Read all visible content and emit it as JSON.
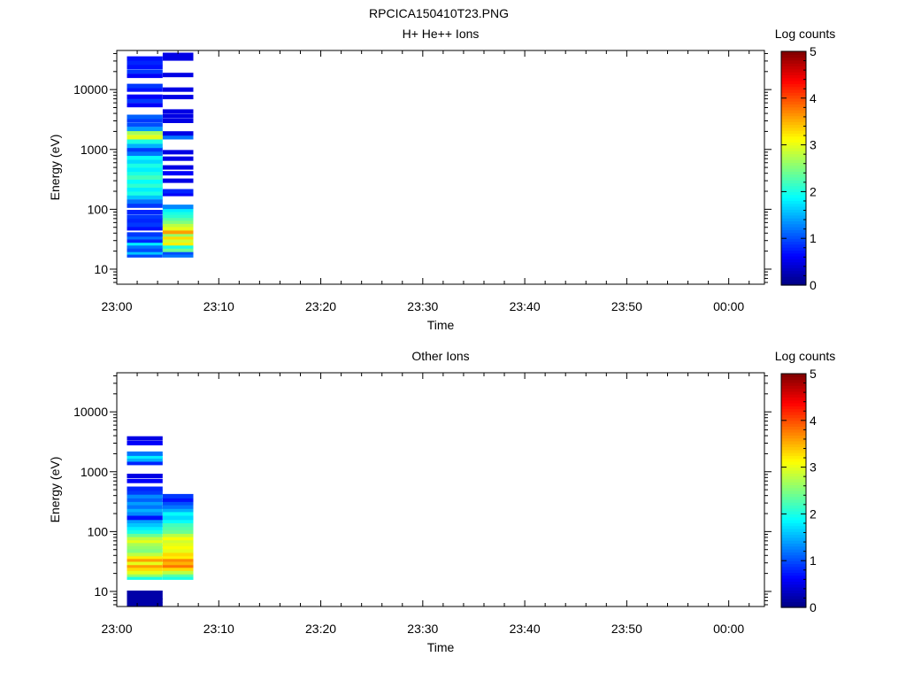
{
  "figure_title": "RPCICA150410T23.PNG",
  "colormap": [
    "#00007f",
    "#0000ff",
    "#007fff",
    "#00ffff",
    "#7fff7f",
    "#ffff00",
    "#ff7f00",
    "#ff0000",
    "#7f0000"
  ],
  "chart_data": [
    {
      "type": "heatmap",
      "title": "H+ He++ Ions",
      "xlabel": "Time",
      "ylabel": "Energy (eV)",
      "y_scale": "log",
      "ylim": [
        5.6,
        45000
      ],
      "x_ticks": [
        "23:00",
        "23:10",
        "23:20",
        "23:30",
        "23:40",
        "23:50",
        "00:00"
      ],
      "y_ticks": [
        "10",
        "100",
        "1000",
        "10000"
      ],
      "colorbar": {
        "label": "Log counts",
        "ticks": [
          "0",
          "1",
          "2",
          "3",
          "4",
          "5"
        ],
        "range": [
          0,
          5
        ]
      },
      "columns": [
        {
          "time_start": "23:01",
          "time_end": "23:04.5",
          "bins": [
            {
              "e": 17,
              "v": 1.0
            },
            {
              "e": 19,
              "v": 1.6
            },
            {
              "e": 21,
              "v": 1.0
            },
            {
              "e": 24,
              "v": 1.2
            },
            {
              "e": 27,
              "v": 1.8
            },
            {
              "e": 30,
              "v": 0.8
            },
            {
              "e": 34,
              "v": 1.2
            },
            {
              "e": 38,
              "v": 0.9
            },
            {
              "e": 48,
              "v": 0.7
            },
            {
              "e": 55,
              "v": 0.9
            },
            {
              "e": 65,
              "v": 0.8
            },
            {
              "e": 75,
              "v": 0.9
            },
            {
              "e": 90,
              "v": 0.8
            },
            {
              "e": 115,
              "v": 0.9
            },
            {
              "e": 135,
              "v": 1.2
            },
            {
              "e": 160,
              "v": 1.6
            },
            {
              "e": 185,
              "v": 2.0
            },
            {
              "e": 215,
              "v": 1.8
            },
            {
              "e": 250,
              "v": 2.1
            },
            {
              "e": 290,
              "v": 1.9
            },
            {
              "e": 340,
              "v": 2.2
            },
            {
              "e": 400,
              "v": 2.0
            },
            {
              "e": 460,
              "v": 1.8
            },
            {
              "e": 540,
              "v": 2.0
            },
            {
              "e": 630,
              "v": 1.7
            },
            {
              "e": 730,
              "v": 1.9
            },
            {
              "e": 850,
              "v": 1.2
            },
            {
              "e": 1000,
              "v": 0.9
            },
            {
              "e": 1150,
              "v": 1.5
            },
            {
              "e": 1350,
              "v": 2.0
            },
            {
              "e": 1600,
              "v": 3.0
            },
            {
              "e": 1900,
              "v": 2.7
            },
            {
              "e": 2200,
              "v": 1.4
            },
            {
              "e": 2600,
              "v": 1.0
            },
            {
              "e": 3100,
              "v": 0.9
            },
            {
              "e": 3500,
              "v": 1.1
            },
            {
              "e": 5500,
              "v": 0.6
            },
            {
              "e": 6500,
              "v": 0.9
            },
            {
              "e": 7600,
              "v": 0.6
            },
            {
              "e": 10000,
              "v": 0.7
            },
            {
              "e": 11500,
              "v": 0.9
            },
            {
              "e": 17000,
              "v": 0.6
            },
            {
              "e": 20000,
              "v": 0.9
            },
            {
              "e": 24000,
              "v": 0.7
            },
            {
              "e": 28000,
              "v": 0.8
            },
            {
              "e": 33000,
              "v": 0.7
            }
          ]
        },
        {
          "time_start": "23:04.5",
          "time_end": "23:07.5",
          "bins": [
            {
              "e": 17,
              "v": 1.2
            },
            {
              "e": 19,
              "v": 1.0
            },
            {
              "e": 21,
              "v": 2.4
            },
            {
              "e": 24,
              "v": 2.0
            },
            {
              "e": 27,
              "v": 3.2
            },
            {
              "e": 30,
              "v": 2.9
            },
            {
              "e": 34,
              "v": 3.3
            },
            {
              "e": 38,
              "v": 2.6
            },
            {
              "e": 42,
              "v": 3.6
            },
            {
              "e": 48,
              "v": 3.0
            },
            {
              "e": 55,
              "v": 2.8
            },
            {
              "e": 62,
              "v": 2.5
            },
            {
              "e": 70,
              "v": 2.3
            },
            {
              "e": 78,
              "v": 2.1
            },
            {
              "e": 88,
              "v": 2.0
            },
            {
              "e": 98,
              "v": 1.8
            },
            {
              "e": 110,
              "v": 1.3
            },
            {
              "e": 180,
              "v": 0.6
            },
            {
              "e": 200,
              "v": 0.8
            },
            {
              "e": 300,
              "v": 0.5
            },
            {
              "e": 400,
              "v": 0.6
            },
            {
              "e": 500,
              "v": 0.5
            },
            {
              "e": 700,
              "v": 0.5
            },
            {
              "e": 900,
              "v": 0.5
            },
            {
              "e": 1600,
              "v": 1.2
            },
            {
              "e": 1850,
              "v": 0.5
            },
            {
              "e": 3000,
              "v": 0.5
            },
            {
              "e": 3600,
              "v": 0.5
            },
            {
              "e": 4300,
              "v": 0.5
            },
            {
              "e": 7500,
              "v": 0.5
            },
            {
              "e": 10000,
              "v": 0.5
            },
            {
              "e": 17500,
              "v": 0.5
            },
            {
              "e": 33000,
              "v": 0.5
            },
            {
              "e": 38000,
              "v": 0.5
            }
          ]
        }
      ]
    },
    {
      "type": "heatmap",
      "title": "Other Ions",
      "xlabel": "Time",
      "ylabel": "Energy (eV)",
      "y_scale": "log",
      "ylim": [
        5.6,
        45000
      ],
      "x_ticks": [
        "23:00",
        "23:10",
        "23:20",
        "23:30",
        "23:40",
        "23:50",
        "00:00"
      ],
      "y_ticks": [
        "10",
        "100",
        "1000",
        "10000"
      ],
      "colorbar": {
        "label": "Log counts",
        "ticks": [
          "0",
          "1",
          "2",
          "3",
          "4",
          "5"
        ],
        "range": [
          0,
          5
        ]
      },
      "columns": [
        {
          "time_start": "23:01",
          "time_end": "23:04.5",
          "bins": [
            {
              "e": 6,
              "v": 0.2
            },
            {
              "e": 7,
              "v": 0.2
            },
            {
              "e": 8,
              "v": 0.2
            },
            {
              "e": 9.5,
              "v": 0.2
            },
            {
              "e": 17,
              "v": 2.0
            },
            {
              "e": 19,
              "v": 2.6
            },
            {
              "e": 21,
              "v": 3.0
            },
            {
              "e": 24,
              "v": 3.3
            },
            {
              "e": 27,
              "v": 3.6
            },
            {
              "e": 30,
              "v": 3.0
            },
            {
              "e": 34,
              "v": 3.6
            },
            {
              "e": 38,
              "v": 3.2
            },
            {
              "e": 42,
              "v": 2.8
            },
            {
              "e": 48,
              "v": 2.5
            },
            {
              "e": 55,
              "v": 2.6
            },
            {
              "e": 62,
              "v": 2.7
            },
            {
              "e": 70,
              "v": 3.0
            },
            {
              "e": 78,
              "v": 2.8
            },
            {
              "e": 88,
              "v": 2.4
            },
            {
              "e": 100,
              "v": 2.0
            },
            {
              "e": 115,
              "v": 1.8
            },
            {
              "e": 130,
              "v": 1.6
            },
            {
              "e": 150,
              "v": 1.4
            },
            {
              "e": 170,
              "v": 0.7
            },
            {
              "e": 200,
              "v": 1.3
            },
            {
              "e": 230,
              "v": 1.5
            },
            {
              "e": 260,
              "v": 1.2
            },
            {
              "e": 300,
              "v": 1.4
            },
            {
              "e": 340,
              "v": 1.1
            },
            {
              "e": 390,
              "v": 1.3
            },
            {
              "e": 450,
              "v": 0.9
            },
            {
              "e": 520,
              "v": 0.8
            },
            {
              "e": 700,
              "v": 0.6
            },
            {
              "e": 850,
              "v": 0.5
            },
            {
              "e": 1400,
              "v": 0.8
            },
            {
              "e": 1600,
              "v": 1.5
            },
            {
              "e": 1800,
              "v": 1.8
            },
            {
              "e": 2000,
              "v": 1.2
            },
            {
              "e": 3000,
              "v": 0.6
            },
            {
              "e": 3600,
              "v": 0.5
            }
          ]
        },
        {
          "time_start": "23:04.5",
          "time_end": "23:07.5",
          "bins": [
            {
              "e": 17,
              "v": 2.0
            },
            {
              "e": 19,
              "v": 2.3
            },
            {
              "e": 21,
              "v": 2.8
            },
            {
              "e": 24,
              "v": 3.3
            },
            {
              "e": 27,
              "v": 3.8
            },
            {
              "e": 30,
              "v": 3.5
            },
            {
              "e": 34,
              "v": 3.7
            },
            {
              "e": 38,
              "v": 3.2
            },
            {
              "e": 42,
              "v": 3.3
            },
            {
              "e": 48,
              "v": 3.0
            },
            {
              "e": 55,
              "v": 3.1
            },
            {
              "e": 62,
              "v": 3.0
            },
            {
              "e": 70,
              "v": 2.9
            },
            {
              "e": 78,
              "v": 3.1
            },
            {
              "e": 88,
              "v": 2.8
            },
            {
              "e": 100,
              "v": 2.4
            },
            {
              "e": 115,
              "v": 2.3
            },
            {
              "e": 130,
              "v": 2.2
            },
            {
              "e": 150,
              "v": 1.9
            },
            {
              "e": 170,
              "v": 1.7
            },
            {
              "e": 200,
              "v": 1.9
            },
            {
              "e": 230,
              "v": 1.5
            },
            {
              "e": 260,
              "v": 1.2
            },
            {
              "e": 300,
              "v": 1.0
            },
            {
              "e": 340,
              "v": 0.7
            },
            {
              "e": 390,
              "v": 0.9
            }
          ]
        }
      ]
    }
  ]
}
